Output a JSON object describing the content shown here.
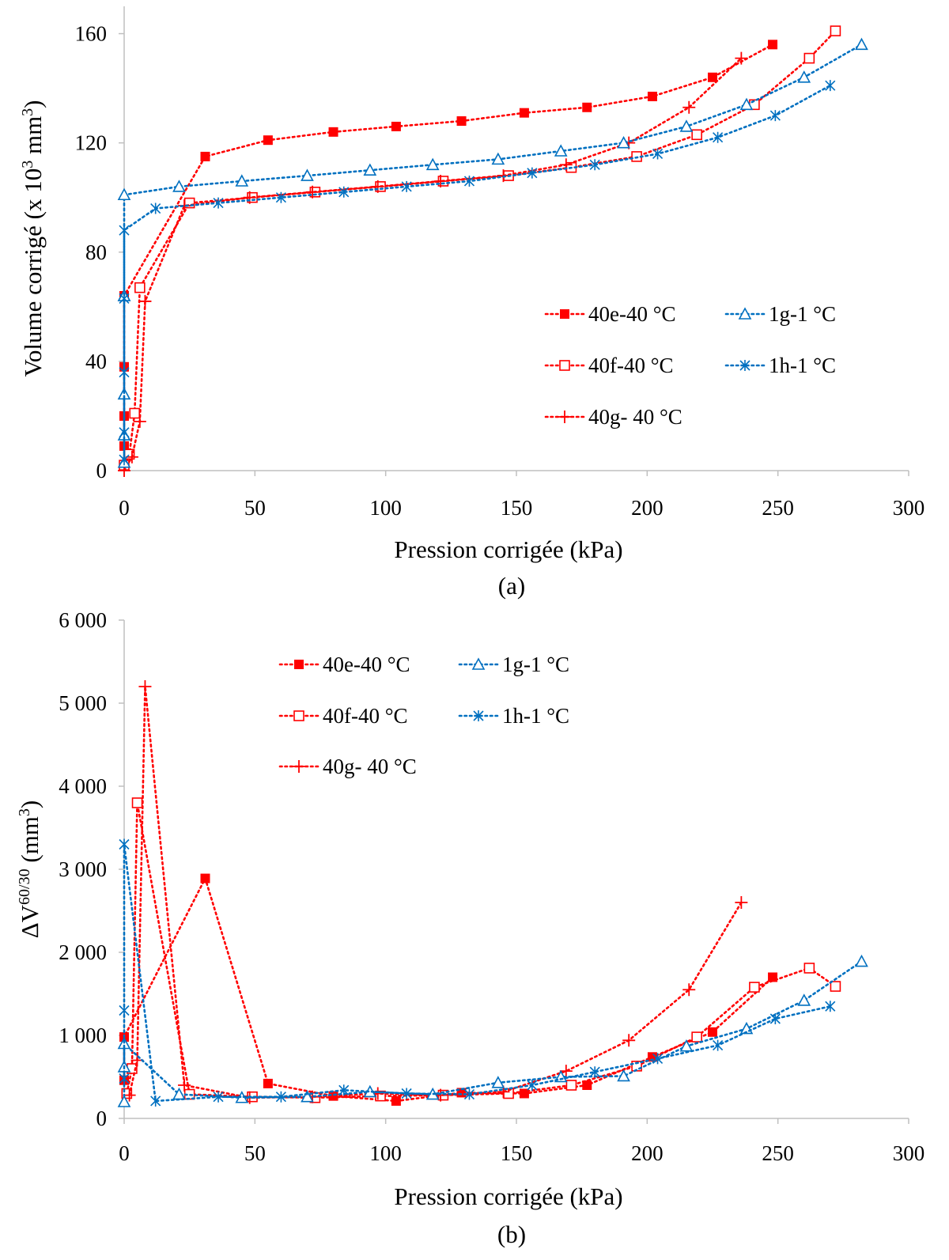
{
  "chart_data": [
    {
      "type": "line",
      "caption": "(a)",
      "xlabel": "Pression corrigée (kPa)",
      "ylabel": "Volume corrigé (x 10³ mm³)",
      "ylabel_main": "Volume corrigé (x 10",
      "ylabel_sup1": "3",
      "ylabel_mid": " mm",
      "ylabel_sup2": "3",
      "ylabel_end": ")",
      "xlim": [
        0,
        300
      ],
      "ylim": [
        0,
        170
      ],
      "xticks": [
        0,
        50,
        100,
        150,
        200,
        250,
        300
      ],
      "yticks": [
        0,
        40,
        80,
        120,
        160
      ],
      "xtick_labels": [
        "0",
        "50",
        "100",
        "150",
        "200",
        "250",
        "300"
      ],
      "ytick_labels": [
        "0",
        "40",
        "80",
        "120",
        "160"
      ],
      "grid": false,
      "legend_placement": "center-right",
      "series": [
        {
          "name": "40e-40 °C",
          "color": "#ff0000",
          "marker": "filled-square",
          "x": [
            0,
            0,
            0,
            0,
            0,
            31,
            55,
            80,
            104,
            129,
            153,
            177,
            202,
            225,
            248
          ],
          "y": [
            9,
            20,
            38,
            64,
            64,
            115,
            121,
            124,
            126,
            128,
            131,
            133,
            137,
            144,
            156
          ]
        },
        {
          "name": "40f-40 °C",
          "color": "#ff0000",
          "marker": "open-square",
          "x": [
            0,
            2,
            4,
            6,
            25,
            49,
            73,
            98,
            122,
            147,
            171,
            196,
            219,
            241,
            262,
            272
          ],
          "y": [
            2,
            6,
            21,
            67,
            98,
            100,
            102,
            104,
            106,
            108,
            111,
            115,
            123,
            134,
            151,
            161
          ]
        },
        {
          "name": "40g- 40 °C",
          "color": "#ff0000",
          "marker": "plus",
          "x": [
            0,
            3,
            6,
            8,
            23,
            48,
            72,
            97,
            121,
            145,
            169,
            193,
            216,
            236
          ],
          "y": [
            0,
            5,
            18,
            62,
            97,
            100,
            102,
            104,
            106,
            108,
            112,
            120,
            133,
            151
          ]
        },
        {
          "name": "1g-1 °C",
          "color": "#0070c0",
          "marker": "open-triangle",
          "x": [
            0,
            0,
            0,
            0,
            0,
            0,
            21,
            45,
            70,
            94,
            118,
            143,
            167,
            191,
            215,
            238,
            260,
            282
          ],
          "y": [
            3,
            13,
            28,
            64,
            64,
            101,
            104,
            106,
            108,
            110,
            112,
            114,
            117,
            120,
            126,
            134,
            144,
            156
          ]
        },
        {
          "name": "1h-1 °C",
          "color": "#0070c0",
          "marker": "asterisk",
          "x": [
            0,
            0,
            0,
            0,
            0,
            12,
            36,
            60,
            84,
            108,
            132,
            156,
            180,
            204,
            227,
            249,
            270
          ],
          "y": [
            4,
            14,
            36,
            63,
            88,
            96,
            98,
            100,
            102,
            104,
            106,
            109,
            112,
            116,
            122,
            130,
            141
          ]
        }
      ]
    },
    {
      "type": "line",
      "caption": "(b)",
      "xlabel": "Pression corrigée (kPa)",
      "ylabel": "ΔV⁶⁰/³⁰ (mm³)",
      "ylabel_main": "ΔV",
      "ylabel_sup1": "60/30",
      "ylabel_mid": " (mm",
      "ylabel_sup2": "3",
      "ylabel_end": ")",
      "xlim": [
        0,
        300
      ],
      "ylim": [
        0,
        6000
      ],
      "xticks": [
        0,
        50,
        100,
        150,
        200,
        250,
        300
      ],
      "yticks": [
        0,
        1000,
        2000,
        3000,
        4000,
        5000,
        6000
      ],
      "xtick_labels": [
        "0",
        "50",
        "100",
        "150",
        "200",
        "250",
        "300"
      ],
      "ytick_labels": [
        "0",
        "1 000",
        "2 000",
        "3 000",
        "4 000",
        "5 000",
        "6 000"
      ],
      "grid": false,
      "legend_placement": "top-center",
      "series": [
        {
          "name": "40e-40 °C",
          "color": "#ff0000",
          "marker": "filled-square",
          "x": [
            0,
            0,
            31,
            55,
            80,
            104,
            129,
            153,
            177,
            202,
            225,
            248
          ],
          "y": [
            460,
            980,
            2890,
            420,
            270,
            210,
            310,
            300,
            400,
            740,
            1040,
            1700
          ]
        },
        {
          "name": "40f-40 °C",
          "color": "#ff0000",
          "marker": "open-square",
          "x": [
            1,
            3,
            5,
            25,
            49,
            73,
            98,
            122,
            147,
            171,
            196,
            219,
            241,
            262,
            272
          ],
          "y": [
            300,
            600,
            3800,
            290,
            260,
            250,
            270,
            280,
            300,
            400,
            630,
            980,
            1580,
            1810,
            1590
          ]
        },
        {
          "name": "40g- 40 °C",
          "color": "#ff0000",
          "marker": "plus",
          "x": [
            2,
            5,
            8,
            23,
            48,
            72,
            97,
            121,
            145,
            169,
            193,
            216,
            236
          ],
          "y": [
            280,
            700,
            5200,
            400,
            250,
            260,
            300,
            280,
            320,
            570,
            940,
            1550,
            2600
          ]
        },
        {
          "name": "1g-1 °C",
          "color": "#0070c0",
          "marker": "open-triangle",
          "x": [
            0,
            0,
            0,
            21,
            45,
            70,
            94,
            118,
            143,
            167,
            191,
            215,
            238,
            260,
            282
          ],
          "y": [
            200,
            620,
            900,
            290,
            250,
            260,
            320,
            290,
            430,
            500,
            510,
            870,
            1080,
            1420,
            1890
          ]
        },
        {
          "name": "1h-1 °C",
          "color": "#0070c0",
          "marker": "asterisk",
          "x": [
            0,
            0,
            0,
            12,
            36,
            60,
            84,
            108,
            132,
            156,
            180,
            204,
            227,
            249,
            270
          ],
          "y": [
            480,
            1300,
            3300,
            210,
            260,
            260,
            340,
            300,
            290,
            400,
            560,
            720,
            880,
            1200,
            1350
          ]
        }
      ]
    }
  ]
}
